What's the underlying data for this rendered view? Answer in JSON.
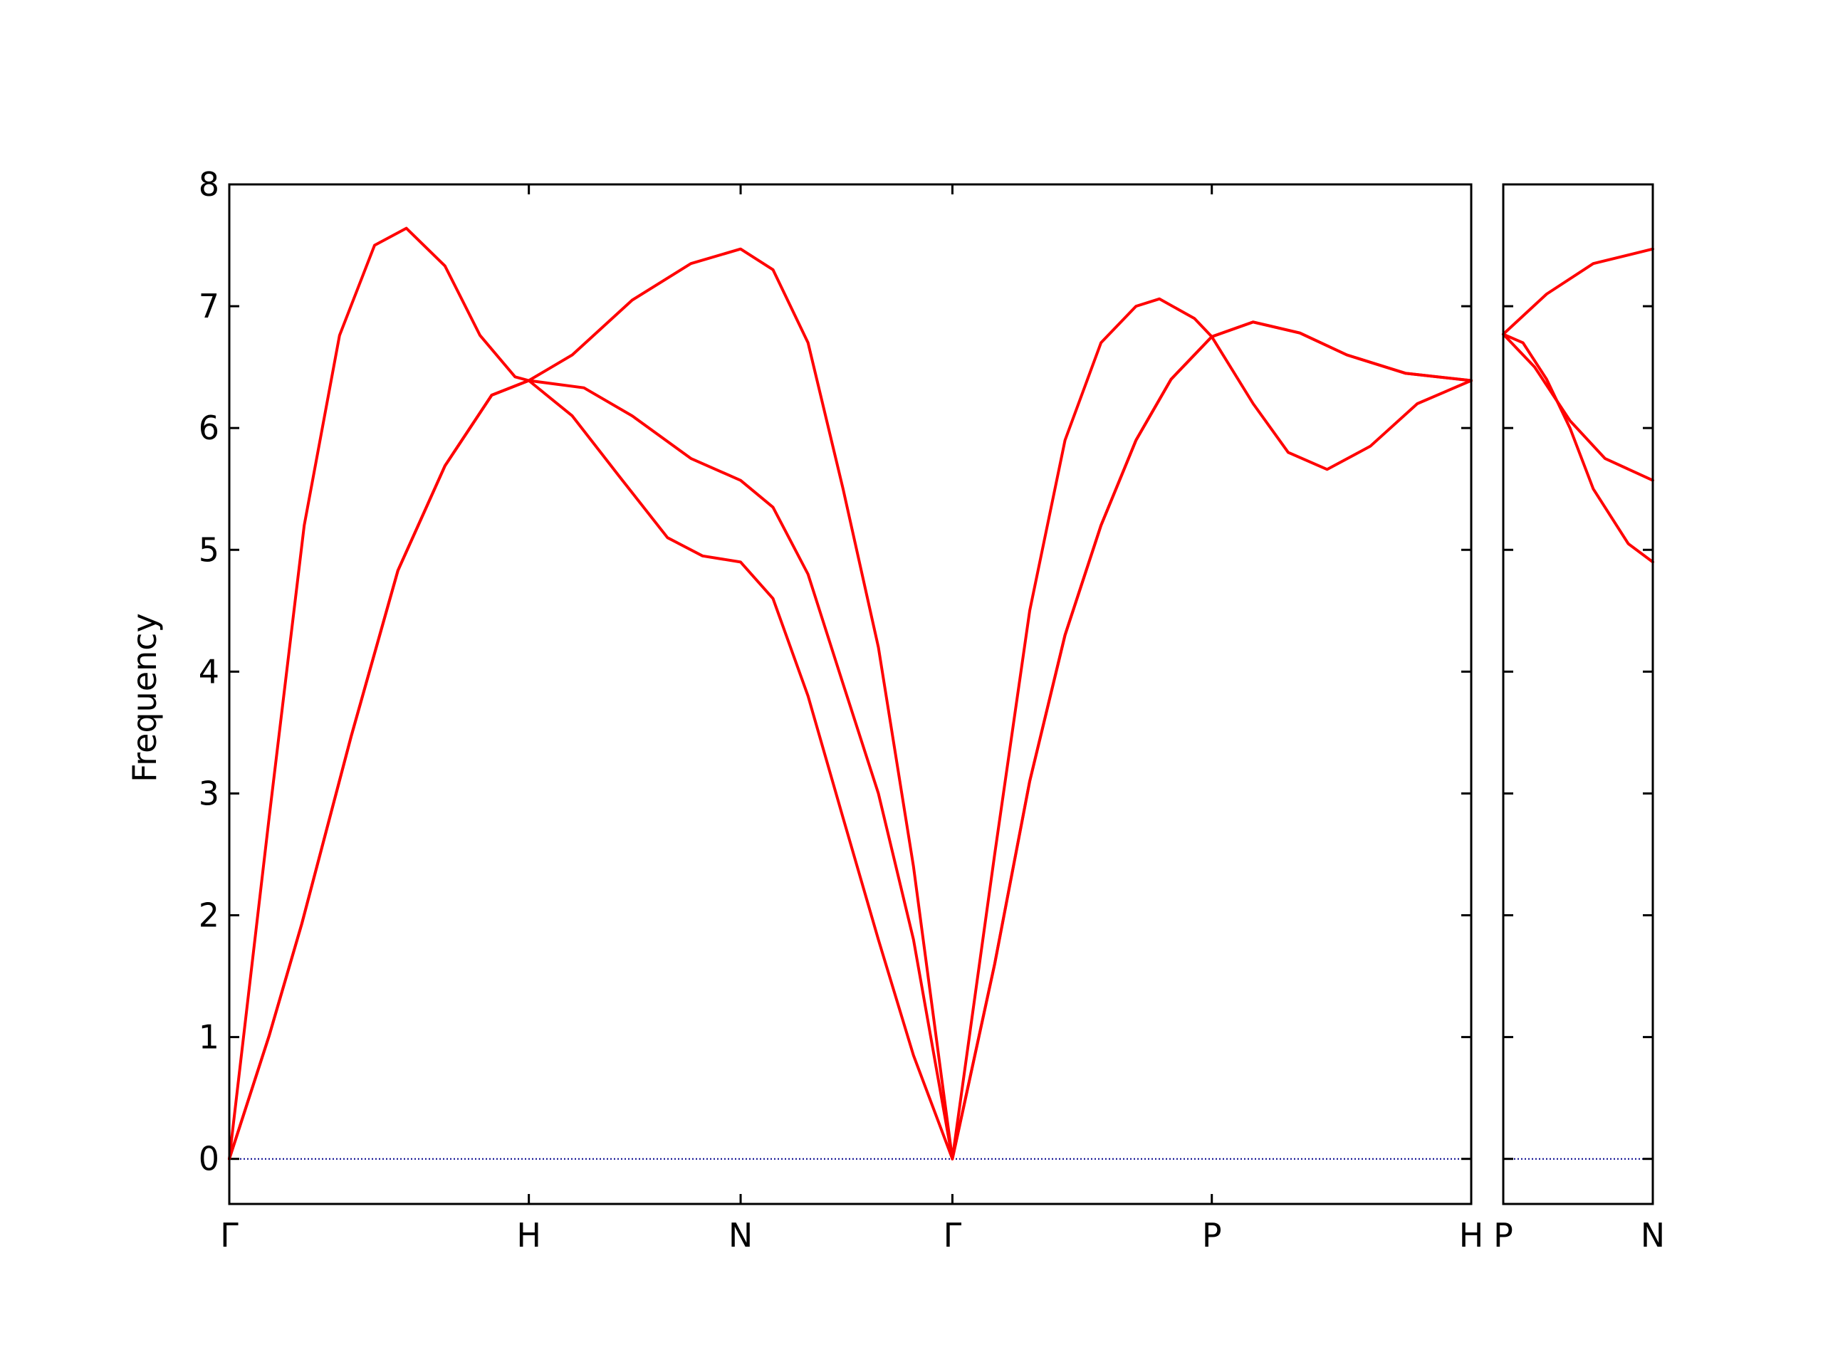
{
  "chart_data": [
    {
      "type": "line",
      "ylabel": "Frequency",
      "xlim": [
        0,
        4.146
      ],
      "ylim": [
        -0.37,
        8
      ],
      "yticks": [
        0,
        1,
        2,
        3,
        4,
        5,
        6,
        7,
        8
      ],
      "xticks": [
        {
          "value": 0,
          "label": "Γ"
        },
        {
          "value": 1.0,
          "label": "H"
        },
        {
          "value": 1.707,
          "label": "N"
        },
        {
          "value": 2.414,
          "label": "Γ"
        },
        {
          "value": 3.28,
          "label": "P"
        },
        {
          "value": 4.146,
          "label": "H"
        }
      ],
      "hline": {
        "value": 0,
        "color": "#00008b"
      },
      "series": [
        {
          "color": "#ff0000",
          "x": [
            0,
            0.133,
            0.242,
            0.407,
            0.563,
            0.72,
            0.876,
            1.0,
            1.145,
            1.303,
            1.463,
            1.58,
            1.707,
            1.815,
            1.932,
            2.049,
            2.167,
            2.284,
            2.414,
            2.555,
            2.672,
            2.79,
            2.91,
            3.027,
            3.144,
            3.28,
            3.418,
            3.535,
            3.665,
            3.809,
            3.966,
            4.146
          ],
          "values": [
            0,
            1.01,
            1.93,
            3.47,
            4.83,
            5.69,
            6.27,
            6.39,
            6.1,
            5.6,
            5.1,
            4.95,
            4.9,
            4.6,
            3.8,
            2.8,
            1.8,
            0.85,
            0,
            1.6,
            3.1,
            4.3,
            5.2,
            5.9,
            6.4,
            6.75,
            6.2,
            5.8,
            5.66,
            5.85,
            6.2,
            6.39
          ]
        },
        {
          "color": "#ff0000",
          "x": [
            0,
            0.133,
            0.242,
            0.407,
            0.563,
            0.72,
            0.876,
            1.0,
            1.184,
            1.345,
            1.541,
            1.707,
            1.815,
            1.932,
            2.049,
            2.167,
            2.284,
            2.414,
            2.555,
            2.672,
            2.79,
            2.91,
            3.027,
            3.144,
            3.28,
            3.418,
            3.574,
            3.731,
            3.926,
            4.146
          ],
          "values": [
            0,
            1.01,
            1.93,
            3.47,
            4.83,
            5.69,
            6.27,
            6.39,
            6.33,
            6.1,
            5.75,
            5.57,
            5.35,
            4.8,
            3.9,
            3.0,
            1.8,
            0,
            1.6,
            3.1,
            4.3,
            5.2,
            5.9,
            6.4,
            6.75,
            6.87,
            6.78,
            6.6,
            6.45,
            6.39
          ]
        },
        {
          "color": "#ff0000",
          "x": [
            0,
            0.133,
            0.25,
            0.368,
            0.485,
            0.591,
            0.72,
            0.837,
            0.954,
            1.0,
            1.145,
            1.345,
            1.541,
            1.707,
            1.815,
            1.932,
            2.049,
            2.167,
            2.284,
            2.414,
            2.555,
            2.672,
            2.79,
            2.91,
            3.027,
            3.105,
            3.222,
            3.28,
            3.418,
            3.574,
            3.731,
            3.926,
            4.146
          ],
          "values": [
            0,
            2.8,
            5.2,
            6.76,
            7.5,
            7.64,
            7.33,
            6.76,
            6.42,
            6.39,
            6.6,
            7.05,
            7.35,
            7.47,
            7.3,
            6.7,
            5.5,
            4.2,
            2.4,
            0,
            2.5,
            4.5,
            5.9,
            6.7,
            7.0,
            7.06,
            6.9,
            6.75,
            6.87,
            6.78,
            6.6,
            6.45,
            6.39
          ]
        }
      ]
    },
    {
      "type": "line",
      "xlim": [
        4.146,
        4.646
      ],
      "xticks": [
        {
          "value": 4.146,
          "label": "P"
        },
        {
          "value": 4.646,
          "label": "N"
        }
      ],
      "hline": {
        "value": 0,
        "color": "#00008b"
      },
      "series": [
        {
          "color": "#ff0000",
          "x": [
            4.146,
            4.291,
            4.447,
            4.646
          ],
          "values": [
            6.77,
            7.1,
            7.35,
            7.47
          ]
        },
        {
          "color": "#ff0000",
          "x": [
            4.146,
            4.251,
            4.369,
            4.486,
            4.646
          ],
          "values": [
            6.77,
            6.5,
            6.06,
            5.75,
            5.57
          ]
        },
        {
          "color": "#ff0000",
          "x": [
            4.146,
            4.212,
            4.291,
            4.369,
            4.447,
            4.564,
            4.646
          ],
          "values": [
            6.77,
            6.7,
            6.4,
            6.0,
            5.5,
            5.05,
            4.9
          ]
        }
      ]
    }
  ]
}
